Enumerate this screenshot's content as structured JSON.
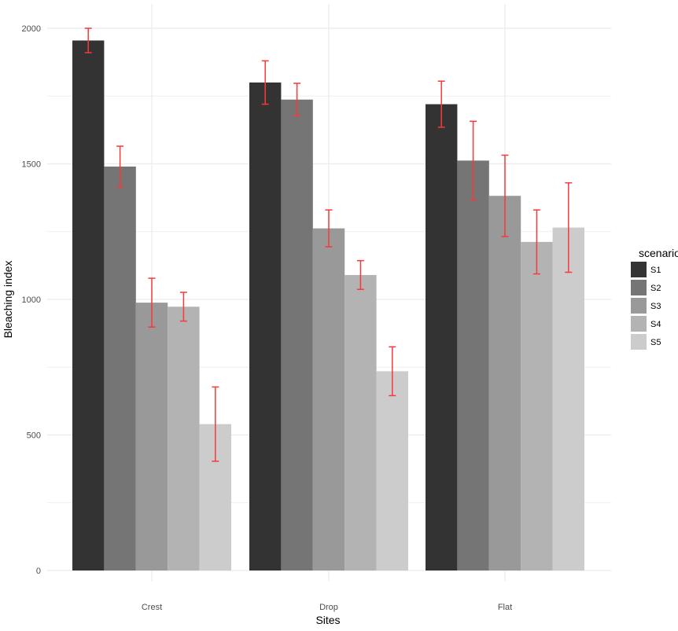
{
  "chart_data": {
    "type": "bar",
    "title": "",
    "xlabel": "Sites",
    "ylabel": "Bleaching index",
    "categories": [
      "Crest",
      "Drop",
      "Flat"
    ],
    "ylim": [
      0,
      2000
    ],
    "y_ticks": [
      0,
      500,
      1000,
      1500,
      2000
    ],
    "grid": true,
    "legend": {
      "title": "scenario",
      "placement": "right"
    },
    "error_bar_color": "#f8383a",
    "series": [
      {
        "name": "S1",
        "color": "#333333",
        "values": [
          1955,
          1800,
          1720
        ],
        "errors": [
          45,
          80,
          85
        ]
      },
      {
        "name": "S2",
        "color": "#757575",
        "values": [
          1490,
          1737,
          1512
        ],
        "errors": [
          75,
          60,
          145
        ]
      },
      {
        "name": "S3",
        "color": "#999999",
        "values": [
          988,
          1262,
          1382
        ],
        "errors": [
          90,
          68,
          150
        ]
      },
      {
        "name": "S4",
        "color": "#b3b3b3",
        "values": [
          973,
          1090,
          1212
        ],
        "errors": [
          53,
          53,
          118
        ]
      },
      {
        "name": "S5",
        "color": "#cccccc",
        "values": [
          540,
          735,
          1265
        ],
        "errors": [
          137,
          90,
          165
        ]
      }
    ]
  }
}
